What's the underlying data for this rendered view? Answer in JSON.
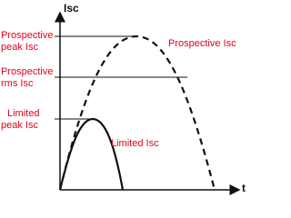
{
  "axes": {
    "y_label": "Isc",
    "x_label": "t"
  },
  "left_labels": [
    {
      "lines": [
        "Prospective",
        "peak Isc"
      ]
    },
    {
      "lines": [
        "Prospective",
        "rms Isc"
      ]
    },
    {
      "lines": [
        "Limited",
        "peak Isc"
      ]
    }
  ],
  "curves": [
    {
      "label": "Prospective Isc"
    },
    {
      "label": "Limited Isc"
    }
  ]
}
